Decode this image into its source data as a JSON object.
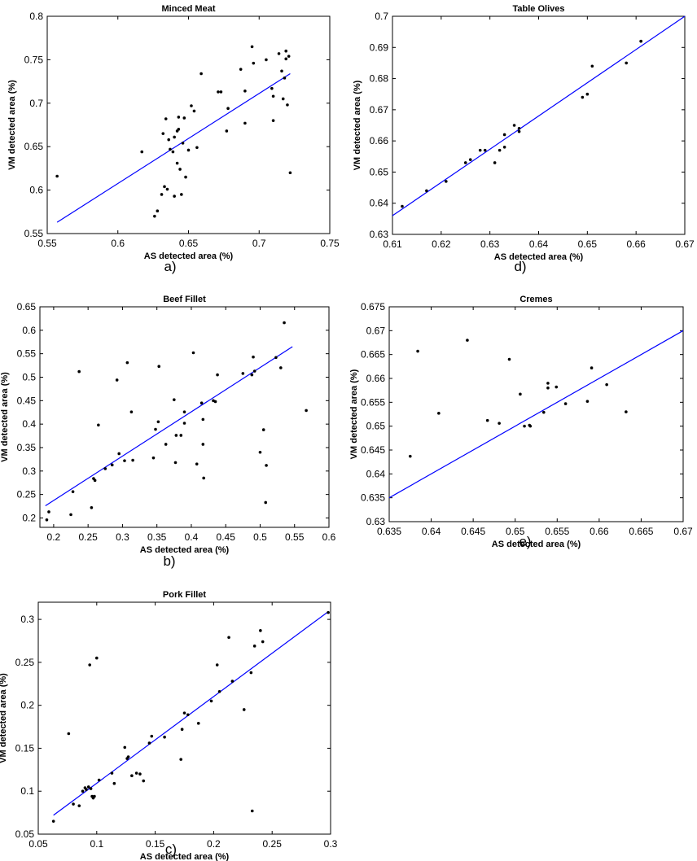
{
  "chart_data": [
    {
      "id": "minced-meat",
      "type": "scatter",
      "title": "Minced Meat",
      "caption": "a)",
      "xlabel": "AS detected area (%)",
      "ylabel": "VM detected area (%)",
      "xlim": [
        0.55,
        0.75
      ],
      "ylim": [
        0.55,
        0.8
      ],
      "xticks": [
        "0.55",
        "0.6",
        "0.65",
        "0.7",
        "0.75"
      ],
      "yticks": [
        "0.55",
        "0.6",
        "0.65",
        "0.7",
        "0.75",
        "0.8"
      ],
      "points": [
        [
          0.557,
          0.616
        ],
        [
          0.617,
          0.644
        ],
        [
          0.626,
          0.57
        ],
        [
          0.628,
          0.576
        ],
        [
          0.631,
          0.595
        ],
        [
          0.632,
          0.665
        ],
        [
          0.633,
          0.604
        ],
        [
          0.634,
          0.682
        ],
        [
          0.635,
          0.601
        ],
        [
          0.636,
          0.658
        ],
        [
          0.637,
          0.647
        ],
        [
          0.639,
          0.644
        ],
        [
          0.64,
          0.661
        ],
        [
          0.64,
          0.593
        ],
        [
          0.642,
          0.668
        ],
        [
          0.642,
          0.631
        ],
        [
          0.643,
          0.67
        ],
        [
          0.643,
          0.684
        ],
        [
          0.644,
          0.624
        ],
        [
          0.645,
          0.595
        ],
        [
          0.646,
          0.654
        ],
        [
          0.647,
          0.683
        ],
        [
          0.648,
          0.615
        ],
        [
          0.65,
          0.646
        ],
        [
          0.652,
          0.697
        ],
        [
          0.654,
          0.691
        ],
        [
          0.656,
          0.649
        ],
        [
          0.659,
          0.734
        ],
        [
          0.671,
          0.713
        ],
        [
          0.673,
          0.713
        ],
        [
          0.677,
          0.668
        ],
        [
          0.678,
          0.694
        ],
        [
          0.687,
          0.739
        ],
        [
          0.69,
          0.714
        ],
        [
          0.69,
          0.677
        ],
        [
          0.695,
          0.765
        ],
        [
          0.696,
          0.746
        ],
        [
          0.705,
          0.75
        ],
        [
          0.709,
          0.717
        ],
        [
          0.71,
          0.708
        ],
        [
          0.71,
          0.68
        ],
        [
          0.714,
          0.757
        ],
        [
          0.716,
          0.737
        ],
        [
          0.717,
          0.705
        ],
        [
          0.718,
          0.729
        ],
        [
          0.719,
          0.751
        ],
        [
          0.719,
          0.76
        ],
        [
          0.72,
          0.698
        ],
        [
          0.721,
          0.754
        ],
        [
          0.722,
          0.62
        ]
      ],
      "fit_line": [
        [
          0.557,
          0.563
        ],
        [
          0.722,
          0.734
        ]
      ],
      "line_color": "#0000ff",
      "marker_color": "#000000"
    },
    {
      "id": "beef-fillet",
      "type": "scatter",
      "title": "Beef Fillet",
      "caption": "b)",
      "xlabel": "AS detected area (%)",
      "ylabel": "VM detected area (%)",
      "xlim": [
        0.18,
        0.6
      ],
      "ylim": [
        0.18,
        0.65
      ],
      "xticks": [
        "0.2",
        "0.25",
        "0.3",
        "0.35",
        "0.4",
        "0.45",
        "0.5",
        "0.55",
        "0.6"
      ],
      "yticks": [
        "0.2",
        "0.25",
        "0.3",
        "0.35",
        "0.4",
        "0.45",
        "0.5",
        "0.55",
        "0.6",
        "0.65"
      ],
      "points": [
        [
          0.19,
          0.196
        ],
        [
          0.193,
          0.213
        ],
        [
          0.225,
          0.207
        ],
        [
          0.228,
          0.256
        ],
        [
          0.237,
          0.512
        ],
        [
          0.255,
          0.222
        ],
        [
          0.258,
          0.284
        ],
        [
          0.26,
          0.28
        ],
        [
          0.265,
          0.398
        ],
        [
          0.275,
          0.305
        ],
        [
          0.285,
          0.313
        ],
        [
          0.292,
          0.494
        ],
        [
          0.295,
          0.337
        ],
        [
          0.303,
          0.322
        ],
        [
          0.307,
          0.531
        ],
        [
          0.313,
          0.426
        ],
        [
          0.315,
          0.323
        ],
        [
          0.345,
          0.328
        ],
        [
          0.348,
          0.389
        ],
        [
          0.352,
          0.405
        ],
        [
          0.353,
          0.523
        ],
        [
          0.363,
          0.357
        ],
        [
          0.375,
          0.452
        ],
        [
          0.377,
          0.318
        ],
        [
          0.378,
          0.376
        ],
        [
          0.385,
          0.376
        ],
        [
          0.39,
          0.426
        ],
        [
          0.39,
          0.402
        ],
        [
          0.403,
          0.552
        ],
        [
          0.408,
          0.315
        ],
        [
          0.415,
          0.445
        ],
        [
          0.417,
          0.41
        ],
        [
          0.417,
          0.357
        ],
        [
          0.418,
          0.285
        ],
        [
          0.432,
          0.45
        ],
        [
          0.435,
          0.448
        ],
        [
          0.438,
          0.505
        ],
        [
          0.475,
          0.508
        ],
        [
          0.488,
          0.505
        ],
        [
          0.49,
          0.543
        ],
        [
          0.492,
          0.513
        ],
        [
          0.5,
          0.34
        ],
        [
          0.505,
          0.388
        ],
        [
          0.508,
          0.233
        ],
        [
          0.509,
          0.312
        ],
        [
          0.523,
          0.542
        ],
        [
          0.53,
          0.52
        ],
        [
          0.535,
          0.616
        ],
        [
          0.567,
          0.429
        ]
      ],
      "fit_line": [
        [
          0.188,
          0.226
        ],
        [
          0.547,
          0.565
        ]
      ],
      "line_color": "#0000ff",
      "marker_color": "#000000"
    },
    {
      "id": "pork-fillet",
      "type": "scatter",
      "title": "Pork Fillet",
      "caption": "c)",
      "xlabel": "AS detected area (%)",
      "ylabel": "VM detected area (%)",
      "xlim": [
        0.05,
        0.3
      ],
      "ylim": [
        0.05,
        0.32
      ],
      "xticks": [
        "0.05",
        "0.1",
        "0.15",
        "0.2",
        "0.25",
        "0.3"
      ],
      "yticks": [
        "0.05",
        "0.1",
        "0.15",
        "0.2",
        "0.25",
        "0.3"
      ],
      "points": [
        [
          0.063,
          0.065
        ],
        [
          0.076,
          0.167
        ],
        [
          0.08,
          0.085
        ],
        [
          0.085,
          0.083
        ],
        [
          0.088,
          0.1
        ],
        [
          0.09,
          0.104
        ],
        [
          0.091,
          0.102
        ],
        [
          0.093,
          0.105
        ],
        [
          0.094,
          0.247
        ],
        [
          0.095,
          0.103
        ],
        [
          0.096,
          0.094
        ],
        [
          0.097,
          0.092
        ],
        [
          0.098,
          0.094
        ],
        [
          0.1,
          0.255
        ],
        [
          0.102,
          0.113
        ],
        [
          0.113,
          0.121
        ],
        [
          0.115,
          0.109
        ],
        [
          0.124,
          0.151
        ],
        [
          0.126,
          0.138
        ],
        [
          0.127,
          0.14
        ],
        [
          0.13,
          0.118
        ],
        [
          0.134,
          0.121
        ],
        [
          0.137,
          0.12
        ],
        [
          0.14,
          0.112
        ],
        [
          0.145,
          0.156
        ],
        [
          0.147,
          0.164
        ],
        [
          0.158,
          0.163
        ],
        [
          0.172,
          0.137
        ],
        [
          0.173,
          0.172
        ],
        [
          0.175,
          0.191
        ],
        [
          0.178,
          0.189
        ],
        [
          0.187,
          0.179
        ],
        [
          0.198,
          0.205
        ],
        [
          0.203,
          0.247
        ],
        [
          0.205,
          0.216
        ],
        [
          0.213,
          0.279
        ],
        [
          0.216,
          0.228
        ],
        [
          0.226,
          0.195
        ],
        [
          0.232,
          0.238
        ],
        [
          0.233,
          0.077
        ],
        [
          0.235,
          0.269
        ],
        [
          0.24,
          0.287
        ],
        [
          0.242,
          0.274
        ],
        [
          0.298,
          0.308
        ]
      ],
      "fit_line": [
        [
          0.063,
          0.072
        ],
        [
          0.298,
          0.309
        ]
      ],
      "line_color": "#0000ff",
      "marker_color": "#000000"
    },
    {
      "id": "table-olives",
      "type": "scatter",
      "title": "Table Olives",
      "caption": "d)",
      "xlabel": "AS detected area (%)",
      "ylabel": "VM detected area (%)",
      "xlim": [
        0.61,
        0.67
      ],
      "ylim": [
        0.63,
        0.7
      ],
      "xticks": [
        "0.61",
        "0.62",
        "0.63",
        "0.64",
        "0.65",
        "0.66",
        "0.67"
      ],
      "yticks": [
        "0.63",
        "0.64",
        "0.65",
        "0.66",
        "0.67",
        "0.68",
        "0.69",
        "0.7"
      ],
      "points": [
        [
          0.612,
          0.639
        ],
        [
          0.617,
          0.644
        ],
        [
          0.621,
          0.647
        ],
        [
          0.625,
          0.653
        ],
        [
          0.626,
          0.654
        ],
        [
          0.628,
          0.657
        ],
        [
          0.629,
          0.657
        ],
        [
          0.631,
          0.653
        ],
        [
          0.632,
          0.657
        ],
        [
          0.633,
          0.658
        ],
        [
          0.633,
          0.662
        ],
        [
          0.635,
          0.665
        ],
        [
          0.636,
          0.663
        ],
        [
          0.636,
          0.664
        ],
        [
          0.649,
          0.674
        ],
        [
          0.65,
          0.675
        ],
        [
          0.651,
          0.684
        ],
        [
          0.658,
          0.685
        ],
        [
          0.661,
          0.692
        ],
        [
          0.661,
          0.692
        ]
      ],
      "fit_line": [
        [
          0.61,
          0.636
        ],
        [
          0.67,
          0.7
        ]
      ],
      "line_color": "#0000ff",
      "marker_color": "#000000"
    },
    {
      "id": "cremes",
      "type": "scatter",
      "title": "Cremes",
      "caption": "e)",
      "xlabel": "AS detected area (%)",
      "ylabel": "VM detected area (%)",
      "xlim": [
        0.635,
        0.67
      ],
      "ylim": [
        0.63,
        0.675
      ],
      "xticks": [
        "0.635",
        "0.64",
        "0.645",
        "0.65",
        "0.655",
        "0.66",
        "0.665",
        "0.67"
      ],
      "yticks": [
        "0.63",
        "0.635",
        "0.64",
        "0.645",
        "0.65",
        "0.655",
        "0.66",
        "0.665",
        "0.67",
        "0.675"
      ],
      "points": [
        [
          0.6375,
          0.6437
        ],
        [
          0.6384,
          0.6657
        ],
        [
          0.6409,
          0.6527
        ],
        [
          0.6443,
          0.668
        ],
        [
          0.6467,
          0.6512
        ],
        [
          0.6481,
          0.6506
        ],
        [
          0.6493,
          0.664
        ],
        [
          0.6506,
          0.6567
        ],
        [
          0.6511,
          0.65
        ],
        [
          0.6517,
          0.6502
        ],
        [
          0.6518,
          0.65
        ],
        [
          0.6534,
          0.6529
        ],
        [
          0.6539,
          0.659
        ],
        [
          0.6539,
          0.658
        ],
        [
          0.6549,
          0.6582
        ],
        [
          0.656,
          0.6547
        ],
        [
          0.6586,
          0.6552
        ],
        [
          0.6591,
          0.6622
        ],
        [
          0.6609,
          0.6587
        ],
        [
          0.6632,
          0.653
        ]
      ],
      "fit_line": [
        [
          0.635,
          0.635
        ],
        [
          0.67,
          0.67
        ]
      ],
      "line_color": "#0000ff",
      "marker_color": "#000000"
    }
  ]
}
